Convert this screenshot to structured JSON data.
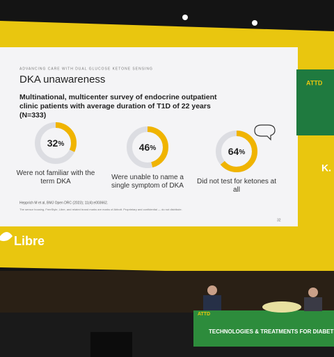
{
  "slide": {
    "kicker": "ADVANCING CARE WITH DUAL GLUCOSE KETONE SENSING",
    "title": "DKA unawareness",
    "subtitle": "Multinational, multicenter survey of endocrine outpatient clinic patients with average duration of T1D of 22 years (N=333)",
    "stats": [
      {
        "value": 32,
        "unit": "%",
        "caption": "Were not familiar with the term DKA"
      },
      {
        "value": 46,
        "unit": "%",
        "caption": "Were unable to name a single symptom of DKA"
      },
      {
        "value": 64,
        "unit": "%",
        "caption": "Did not test for ketones at all"
      }
    ],
    "reference": "Hepprich M et al, BMJ Open DRC (2023); 11(4):e003662.",
    "disclaimer": "The sensor housing, FreeStyle, Libre, and related brand marks are marks of Abbott. Proprietary and confidential — do not distribute.",
    "page_number": "32",
    "logo": "Libre"
  },
  "side_screen": {
    "label": "ATTD",
    "letter": "K."
  },
  "banner": {
    "logo": "ATTD",
    "text": "TECHNOLOGIES & TREATMENTS FOR DIABETES"
  }
}
